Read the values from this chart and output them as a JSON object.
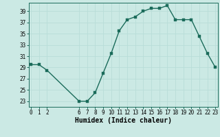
{
  "x": [
    0,
    1,
    2,
    6,
    7,
    8,
    9,
    10,
    11,
    12,
    13,
    14,
    15,
    16,
    17,
    18,
    19,
    20,
    21,
    22,
    23
  ],
  "y": [
    29.5,
    29.5,
    28.5,
    23,
    23,
    24.5,
    28,
    31.5,
    35.5,
    37.5,
    38,
    39,
    39.5,
    39.5,
    40,
    37.5,
    37.5,
    37.5,
    34.5,
    31.5,
    29
  ],
  "xlabel": "Humidex (Indice chaleur)",
  "bg_color": "#cbe9e4",
  "line_color": "#1a6b5a",
  "grid_color": "#b8ddd8",
  "yticks": [
    23,
    25,
    27,
    29,
    31,
    33,
    35,
    37,
    39
  ],
  "xtick_vals": [
    0,
    1,
    2,
    6,
    7,
    8,
    9,
    10,
    11,
    12,
    13,
    14,
    15,
    16,
    17,
    18,
    19,
    20,
    21,
    22,
    23
  ],
  "xtick_labels": [
    "0",
    "1",
    "2",
    "6",
    "7",
    "8",
    "9",
    "10",
    "11",
    "12",
    "13",
    "14",
    "15",
    "16",
    "17",
    "18",
    "19",
    "20",
    "21",
    "22",
    "23"
  ],
  "ylim": [
    22.0,
    40.5
  ],
  "xlim": [
    -0.3,
    23.3
  ],
  "marker_size": 2.5,
  "line_width": 1.0,
  "axis_fontsize": 7,
  "tick_fontsize": 5.5
}
